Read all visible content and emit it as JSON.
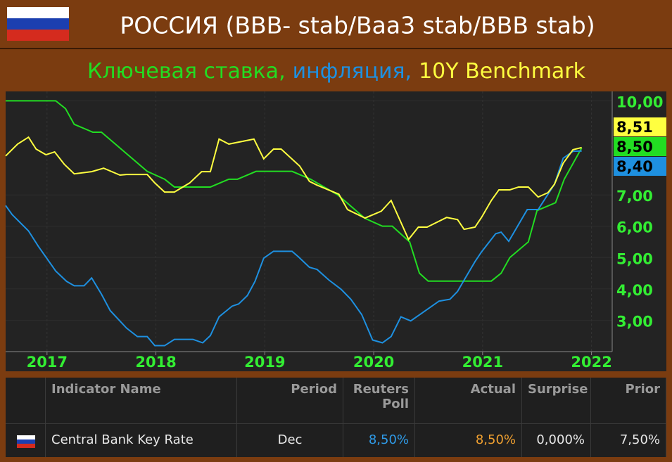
{
  "header": {
    "title": "РОССИЯ (BBB- stab/Baa3 stab/BBB stab)"
  },
  "chart_data": {
    "type": "line",
    "xlim": [
      2016.62,
      2022.19
    ],
    "xticks": [
      2017,
      2018,
      2019,
      2020,
      2021,
      2022
    ],
    "ylim": [
      2.0,
      10.3
    ],
    "yticks": [
      {
        "value": 10,
        "label": "10,00"
      },
      {
        "value": 7,
        "label": "7,00"
      },
      {
        "value": 6,
        "label": "6,00"
      },
      {
        "value": 5,
        "label": "5,00"
      },
      {
        "value": 4,
        "label": "4,00"
      },
      {
        "value": 3,
        "label": "3,00"
      }
    ],
    "grid": true,
    "series": [
      {
        "name": "Ключевая ставка,",
        "color": "#22dd22",
        "last_value_label": "8,50",
        "x": [
          2016.62,
          2017.08,
          2017.17,
          2017.25,
          2017.42,
          2017.5,
          2017.92,
          2018.08,
          2018.17,
          2018.5,
          2018.67,
          2018.75,
          2018.92,
          2019.25,
          2019.42,
          2019.67,
          2019.92,
          2020.08,
          2020.17,
          2020.33,
          2020.42,
          2020.5,
          2020.75,
          2021.08,
          2021.17,
          2021.25,
          2021.42,
          2021.5,
          2021.67,
          2021.75,
          2021.91
        ],
        "values": [
          10.0,
          10.0,
          9.75,
          9.25,
          9.0,
          9.0,
          7.75,
          7.5,
          7.25,
          7.25,
          7.5,
          7.5,
          7.75,
          7.75,
          7.5,
          7.0,
          6.25,
          6.0,
          6.0,
          5.5,
          4.5,
          4.25,
          4.25,
          4.25,
          4.5,
          5.0,
          5.5,
          6.5,
          6.75,
          7.5,
          8.5
        ]
      },
      {
        "name": "инфляция,",
        "color": "#1e90e0",
        "last_value_label": "8,40",
        "x": [
          2016.62,
          2016.68,
          2016.83,
          2016.92,
          2017.08,
          2017.18,
          2017.25,
          2017.34,
          2017.41,
          2017.5,
          2017.58,
          2017.73,
          2017.83,
          2017.92,
          2017.99,
          2018.08,
          2018.17,
          2018.34,
          2018.43,
          2018.5,
          2018.58,
          2018.7,
          2018.76,
          2018.84,
          2018.91,
          2018.99,
          2019.08,
          2019.25,
          2019.31,
          2019.41,
          2019.48,
          2019.59,
          2019.7,
          2019.79,
          2019.89,
          2019.99,
          2020.08,
          2020.16,
          2020.25,
          2020.34,
          2020.44,
          2020.6,
          2020.7,
          2020.77,
          2020.83,
          2020.93,
          2020.99,
          2021.12,
          2021.17,
          2021.24,
          2021.41,
          2021.51,
          2021.66,
          2021.74,
          2021.83,
          2021.91
        ],
        "values": [
          6.66,
          6.37,
          5.85,
          5.36,
          4.57,
          4.24,
          4.1,
          4.1,
          4.35,
          3.83,
          3.31,
          2.75,
          2.48,
          2.48,
          2.19,
          2.19,
          2.39,
          2.39,
          2.28,
          2.51,
          3.11,
          3.45,
          3.52,
          3.79,
          4.24,
          4.98,
          5.2,
          5.2,
          5.02,
          4.69,
          4.62,
          4.28,
          3.99,
          3.67,
          3.18,
          2.37,
          2.28,
          2.48,
          3.11,
          2.98,
          3.22,
          3.61,
          3.67,
          3.92,
          4.28,
          4.87,
          5.18,
          5.76,
          5.81,
          5.52,
          6.53,
          6.53,
          7.34,
          8.17,
          8.39,
          8.4
        ]
      },
      {
        "name": "10Y Benchmark",
        "color": "#ffff40",
        "last_value_label": "8,51",
        "x": [
          2016.62,
          2016.73,
          2016.83,
          2016.9,
          2016.99,
          2017.07,
          2017.16,
          2017.25,
          2017.41,
          2017.52,
          2017.67,
          2017.73,
          2017.92,
          2017.99,
          2018.08,
          2018.17,
          2018.31,
          2018.42,
          2018.5,
          2018.58,
          2018.67,
          2018.9,
          2018.99,
          2019.08,
          2019.15,
          2019.32,
          2019.41,
          2019.48,
          2019.68,
          2019.76,
          2019.92,
          2020.07,
          2020.16,
          2020.32,
          2020.41,
          2020.49,
          2020.67,
          2020.77,
          2020.83,
          2020.93,
          2020.99,
          2021.08,
          2021.15,
          2021.25,
          2021.33,
          2021.42,
          2021.51,
          2021.6,
          2021.66,
          2021.74,
          2021.83,
          2021.91
        ],
        "values": [
          8.24,
          8.62,
          8.84,
          8.46,
          8.28,
          8.37,
          7.97,
          7.67,
          7.74,
          7.85,
          7.63,
          7.65,
          7.65,
          7.38,
          7.09,
          7.09,
          7.38,
          7.74,
          7.74,
          8.78,
          8.62,
          8.78,
          8.15,
          8.46,
          8.46,
          7.92,
          7.43,
          7.31,
          7.02,
          6.53,
          6.26,
          6.48,
          6.82,
          5.58,
          5.97,
          5.97,
          6.28,
          6.21,
          5.9,
          5.97,
          6.28,
          6.82,
          7.16,
          7.16,
          7.25,
          7.25,
          6.93,
          7.07,
          7.34,
          8.01,
          8.44,
          8.51
        ]
      }
    ]
  },
  "table": {
    "columns": [
      "Indicator Name",
      "Period",
      "Reuters\nPoll",
      "Actual",
      "Surprise",
      "Prior"
    ],
    "rows": [
      [
        "Central Bank Key Rate",
        "Dec",
        "8,50%",
        "8,50%",
        "0,000%",
        "7,50%"
      ]
    ]
  }
}
